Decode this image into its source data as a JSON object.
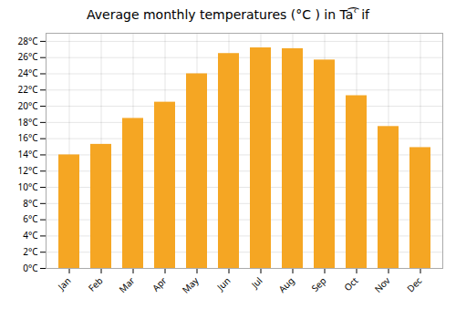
{
  "chart_data": {
    "type": "bar",
    "title": "Average monthly temperatures (°C ) in Ta͡ʿ if",
    "categories": [
      "Jan",
      "Feb",
      "Mar",
      "Apr",
      "May",
      "Jun",
      "Jul",
      "Aug",
      "Sep",
      "Oct",
      "Nov",
      "Dec"
    ],
    "values": [
      14.0,
      15.3,
      18.5,
      20.5,
      24.0,
      26.5,
      27.2,
      27.1,
      25.7,
      21.3,
      17.5,
      14.9
    ],
    "color": "#F5A623",
    "ylim": [
      0,
      29
    ],
    "yticks": [
      {
        "value": 0,
        "label": "0°C"
      },
      {
        "value": 2,
        "label": "2°C"
      },
      {
        "value": 4,
        "label": "4°C"
      },
      {
        "value": 6,
        "label": "6°C"
      },
      {
        "value": 8,
        "label": "8°C"
      },
      {
        "value": 10,
        "label": "10°C"
      },
      {
        "value": 12,
        "label": "12°C"
      },
      {
        "value": 14,
        "label": "14°C"
      },
      {
        "value": 16,
        "label": "16°C"
      },
      {
        "value": 18,
        "label": "18°C"
      },
      {
        "value": 20,
        "label": "20°C"
      },
      {
        "value": 22,
        "label": "22°C"
      },
      {
        "value": 24,
        "label": "24°C"
      },
      {
        "value": 26,
        "label": "26°C"
      },
      {
        "value": 28,
        "label": "28°C"
      }
    ],
    "grid": true
  }
}
